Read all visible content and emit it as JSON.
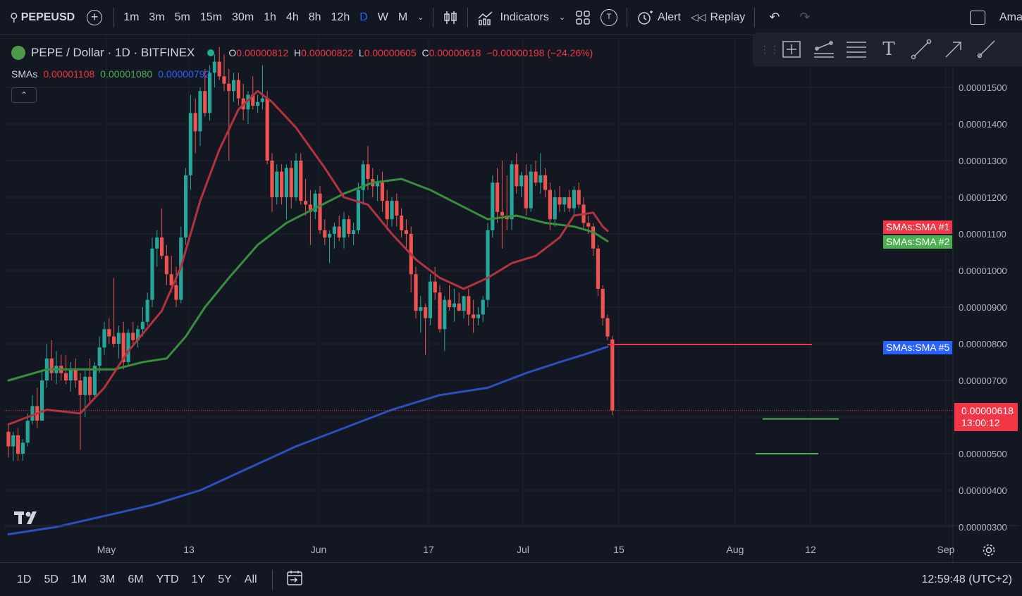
{
  "topbar": {
    "symbol": "PEPEUSD",
    "timeframes": [
      "1m",
      "3m",
      "5m",
      "15m",
      "30m",
      "1h",
      "4h",
      "8h",
      "12h",
      "D",
      "W",
      "M"
    ],
    "active_timeframe": "D",
    "indicators_label": "Indicators",
    "alert_label": "Alert",
    "replay_label": "Replay",
    "truncated_label": "Ama"
  },
  "legend": {
    "title": "PEPE / Dollar · 1D · BITFINEX",
    "o_label": "O",
    "o_value": "0.00000812",
    "h_label": "H",
    "h_value": "0.00000822",
    "l_label": "L",
    "l_value": "0.00000605",
    "c_label": "C",
    "c_value": "0.00000618",
    "change": "−0.00000198 (−24.26%)",
    "smas_label": "SMAs",
    "sma1_value": "0.00001108",
    "sma2_value": "0.00001080",
    "sma5_value": "0.00000792"
  },
  "price_labels": {
    "sma1": "SMAs:SMA #1",
    "sma2": "SMAs:SMA #2",
    "sma5": "SMAs:SMA #5",
    "last_price": "0.00000618",
    "countdown": "13:00:12"
  },
  "chart_data": {
    "type": "candlestick",
    "y_ticks": [
      "0.00001500",
      "0.00001400",
      "0.00001300",
      "0.00001200",
      "0.00001100",
      "0.00001000",
      "0.00000900",
      "0.00000800",
      "0.00000700",
      "0.00000500",
      "0.00000400",
      "0.00000300"
    ],
    "x_ticks": [
      "May",
      "13",
      "Jun",
      "17",
      "Jul",
      "15",
      "Aug",
      "12",
      "Sep"
    ],
    "ylim": [
      2.8e-06,
      1.6e-05
    ],
    "candles": [
      {
        "o": 5.6,
        "h": 5.8,
        "l": 4.9,
        "c": 5.2
      },
      {
        "o": 5.2,
        "h": 5.6,
        "l": 4.8,
        "c": 5.5
      },
      {
        "o": 5.5,
        "h": 5.7,
        "l": 4.8,
        "c": 5.0
      },
      {
        "o": 5.0,
        "h": 5.4,
        "l": 4.8,
        "c": 5.3
      },
      {
        "o": 5.3,
        "h": 6.1,
        "l": 5.2,
        "c": 5.9
      },
      {
        "o": 5.9,
        "h": 6.6,
        "l": 5.8,
        "c": 6.3
      },
      {
        "o": 6.3,
        "h": 6.8,
        "l": 5.7,
        "c": 5.9
      },
      {
        "o": 5.9,
        "h": 7.3,
        "l": 5.9,
        "c": 7.0
      },
      {
        "o": 7.0,
        "h": 8.0,
        "l": 6.8,
        "c": 7.6
      },
      {
        "o": 7.6,
        "h": 8.1,
        "l": 7.0,
        "c": 7.2
      },
      {
        "o": 7.2,
        "h": 7.8,
        "l": 6.9,
        "c": 7.4
      },
      {
        "o": 7.4,
        "h": 7.7,
        "l": 7.0,
        "c": 7.2
      },
      {
        "o": 7.2,
        "h": 7.7,
        "l": 6.9,
        "c": 7.0
      },
      {
        "o": 7.0,
        "h": 7.5,
        "l": 6.7,
        "c": 7.3
      },
      {
        "o": 7.3,
        "h": 7.6,
        "l": 6.8,
        "c": 7.0
      },
      {
        "o": 7.0,
        "h": 7.2,
        "l": 5.1,
        "c": 6.6
      },
      {
        "o": 6.6,
        "h": 7.3,
        "l": 6.0,
        "c": 7.1
      },
      {
        "o": 7.1,
        "h": 7.6,
        "l": 6.4,
        "c": 6.6
      },
      {
        "o": 6.6,
        "h": 7.5,
        "l": 6.5,
        "c": 7.4
      },
      {
        "o": 7.4,
        "h": 8.2,
        "l": 7.2,
        "c": 7.9
      },
      {
        "o": 7.9,
        "h": 8.6,
        "l": 7.7,
        "c": 8.4
      },
      {
        "o": 8.4,
        "h": 8.7,
        "l": 8.0,
        "c": 8.2
      },
      {
        "o": 8.2,
        "h": 9.8,
        "l": 7.9,
        "c": 8.0
      },
      {
        "o": 8.0,
        "h": 8.5,
        "l": 7.6,
        "c": 8.3
      },
      {
        "o": 8.3,
        "h": 8.6,
        "l": 7.3,
        "c": 7.5
      },
      {
        "o": 7.5,
        "h": 8.4,
        "l": 7.4,
        "c": 8.3
      },
      {
        "o": 8.3,
        "h": 8.6,
        "l": 8.0,
        "c": 8.1
      },
      {
        "o": 8.1,
        "h": 8.5,
        "l": 7.9,
        "c": 8.4
      },
      {
        "o": 8.4,
        "h": 9.0,
        "l": 8.2,
        "c": 8.6
      },
      {
        "o": 8.6,
        "h": 9.4,
        "l": 8.5,
        "c": 9.2
      },
      {
        "o": 9.2,
        "h": 10.9,
        "l": 9.0,
        "c": 10.6
      },
      {
        "o": 10.6,
        "h": 11.1,
        "l": 10.1,
        "c": 10.9
      },
      {
        "o": 10.9,
        "h": 11.7,
        "l": 10.3,
        "c": 10.4
      },
      {
        "o": 10.4,
        "h": 10.7,
        "l": 9.6,
        "c": 9.9
      },
      {
        "o": 9.9,
        "h": 10.4,
        "l": 9.4,
        "c": 9.6
      },
      {
        "o": 9.6,
        "h": 10.1,
        "l": 9.0,
        "c": 9.2
      },
      {
        "o": 9.2,
        "h": 11.2,
        "l": 9.1,
        "c": 10.9
      },
      {
        "o": 10.9,
        "h": 12.8,
        "l": 10.7,
        "c": 12.6
      },
      {
        "o": 12.6,
        "h": 14.8,
        "l": 12.2,
        "c": 14.3
      },
      {
        "o": 14.3,
        "h": 14.7,
        "l": 13.2,
        "c": 13.8
      },
      {
        "o": 13.8,
        "h": 15.0,
        "l": 13.4,
        "c": 14.9
      },
      {
        "o": 14.9,
        "h": 15.5,
        "l": 14.2,
        "c": 14.3
      },
      {
        "o": 14.3,
        "h": 15.6,
        "l": 14.1,
        "c": 15.4
      },
      {
        "o": 15.4,
        "h": 15.9,
        "l": 15.0,
        "c": 15.7
      },
      {
        "o": 15.7,
        "h": 16.1,
        "l": 15.2,
        "c": 15.3
      },
      {
        "o": 15.3,
        "h": 15.9,
        "l": 14.9,
        "c": 15.1
      },
      {
        "o": 15.1,
        "h": 15.5,
        "l": 13.0,
        "c": 14.9
      },
      {
        "o": 14.9,
        "h": 15.4,
        "l": 14.6,
        "c": 15.2
      },
      {
        "o": 15.2,
        "h": 15.4,
        "l": 14.5,
        "c": 14.7
      },
      {
        "o": 14.7,
        "h": 15.1,
        "l": 14.1,
        "c": 14.4
      },
      {
        "o": 14.4,
        "h": 14.9,
        "l": 14.0,
        "c": 14.8
      },
      {
        "o": 14.8,
        "h": 15.3,
        "l": 14.4,
        "c": 14.5
      },
      {
        "o": 14.5,
        "h": 14.8,
        "l": 14.3,
        "c": 14.6
      },
      {
        "o": 14.6,
        "h": 15.6,
        "l": 14.4,
        "c": 14.7
      },
      {
        "o": 14.7,
        "h": 14.9,
        "l": 12.9,
        "c": 13.0
      },
      {
        "o": 13.0,
        "h": 13.2,
        "l": 11.6,
        "c": 12.0
      },
      {
        "o": 12.0,
        "h": 12.9,
        "l": 11.8,
        "c": 12.7
      },
      {
        "o": 12.7,
        "h": 12.9,
        "l": 11.8,
        "c": 12.0
      },
      {
        "o": 12.0,
        "h": 12.9,
        "l": 11.4,
        "c": 12.8
      },
      {
        "o": 12.8,
        "h": 13.0,
        "l": 11.7,
        "c": 12.0
      },
      {
        "o": 12.0,
        "h": 13.2,
        "l": 11.9,
        "c": 13.0
      },
      {
        "o": 13.0,
        "h": 13.2,
        "l": 11.8,
        "c": 11.9
      },
      {
        "o": 11.9,
        "h": 12.5,
        "l": 11.5,
        "c": 11.8
      },
      {
        "o": 11.8,
        "h": 12.2,
        "l": 10.7,
        "c": 11.6
      },
      {
        "o": 11.6,
        "h": 12.2,
        "l": 11.4,
        "c": 12.1
      },
      {
        "o": 12.1,
        "h": 12.3,
        "l": 11.0,
        "c": 11.1
      },
      {
        "o": 11.1,
        "h": 11.4,
        "l": 10.7,
        "c": 10.9
      },
      {
        "o": 10.9,
        "h": 11.1,
        "l": 10.2,
        "c": 11.0
      },
      {
        "o": 11.0,
        "h": 11.3,
        "l": 10.6,
        "c": 11.2
      },
      {
        "o": 11.2,
        "h": 11.5,
        "l": 10.8,
        "c": 10.9
      },
      {
        "o": 10.9,
        "h": 11.6,
        "l": 10.6,
        "c": 11.4
      },
      {
        "o": 11.4,
        "h": 11.5,
        "l": 10.9,
        "c": 11.0
      },
      {
        "o": 11.0,
        "h": 11.3,
        "l": 10.7,
        "c": 11.1
      },
      {
        "o": 11.1,
        "h": 12.4,
        "l": 11.0,
        "c": 12.2
      },
      {
        "o": 12.2,
        "h": 13.0,
        "l": 11.8,
        "c": 12.9
      },
      {
        "o": 12.9,
        "h": 13.4,
        "l": 12.2,
        "c": 12.5
      },
      {
        "o": 12.5,
        "h": 12.8,
        "l": 12.0,
        "c": 12.3
      },
      {
        "o": 12.3,
        "h": 12.6,
        "l": 11.9,
        "c": 12.4
      },
      {
        "o": 12.4,
        "h": 12.7,
        "l": 11.6,
        "c": 11.9
      },
      {
        "o": 11.9,
        "h": 12.2,
        "l": 11.1,
        "c": 11.4
      },
      {
        "o": 11.4,
        "h": 12.0,
        "l": 11.2,
        "c": 11.9
      },
      {
        "o": 11.9,
        "h": 12.1,
        "l": 11.2,
        "c": 11.5
      },
      {
        "o": 11.5,
        "h": 11.7,
        "l": 10.9,
        "c": 11.1
      },
      {
        "o": 11.1,
        "h": 11.4,
        "l": 10.6,
        "c": 11.0
      },
      {
        "o": 11.0,
        "h": 11.2,
        "l": 9.4,
        "c": 9.9
      },
      {
        "o": 9.9,
        "h": 10.1,
        "l": 8.7,
        "c": 8.9
      },
      {
        "o": 8.9,
        "h": 9.3,
        "l": 8.3,
        "c": 9.0
      },
      {
        "o": 9.0,
        "h": 9.1,
        "l": 7.7,
        "c": 8.7
      },
      {
        "o": 8.7,
        "h": 9.9,
        "l": 8.5,
        "c": 9.7
      },
      {
        "o": 9.7,
        "h": 10.1,
        "l": 9.2,
        "c": 9.4
      },
      {
        "o": 9.4,
        "h": 9.6,
        "l": 8.3,
        "c": 8.4
      },
      {
        "o": 8.4,
        "h": 9.3,
        "l": 7.8,
        "c": 9.2
      },
      {
        "o": 9.2,
        "h": 9.6,
        "l": 8.9,
        "c": 9.0
      },
      {
        "o": 9.0,
        "h": 9.5,
        "l": 8.6,
        "c": 9.1
      },
      {
        "o": 9.1,
        "h": 9.4,
        "l": 8.9,
        "c": 8.9
      },
      {
        "o": 8.9,
        "h": 9.3,
        "l": 8.7,
        "c": 9.3
      },
      {
        "o": 9.3,
        "h": 9.5,
        "l": 8.5,
        "c": 8.8
      },
      {
        "o": 8.8,
        "h": 9.2,
        "l": 8.3,
        "c": 8.7
      },
      {
        "o": 8.7,
        "h": 9.0,
        "l": 8.5,
        "c": 8.8
      },
      {
        "o": 8.8,
        "h": 9.3,
        "l": 8.6,
        "c": 9.2
      },
      {
        "o": 9.2,
        "h": 11.3,
        "l": 9.0,
        "c": 11.1
      },
      {
        "o": 11.1,
        "h": 12.6,
        "l": 10.9,
        "c": 12.4
      },
      {
        "o": 12.4,
        "h": 12.8,
        "l": 11.3,
        "c": 11.6
      },
      {
        "o": 11.6,
        "h": 13.0,
        "l": 10.6,
        "c": 11.5
      },
      {
        "o": 11.5,
        "h": 12.6,
        "l": 11.1,
        "c": 11.4
      },
      {
        "o": 11.4,
        "h": 13.0,
        "l": 11.1,
        "c": 12.9
      },
      {
        "o": 12.9,
        "h": 13.2,
        "l": 12.1,
        "c": 12.3
      },
      {
        "o": 12.3,
        "h": 12.7,
        "l": 12.0,
        "c": 12.6
      },
      {
        "o": 12.6,
        "h": 12.9,
        "l": 11.5,
        "c": 11.7
      },
      {
        "o": 11.7,
        "h": 12.9,
        "l": 11.6,
        "c": 12.7
      },
      {
        "o": 12.7,
        "h": 13.0,
        "l": 12.3,
        "c": 12.4
      },
      {
        "o": 12.4,
        "h": 13.2,
        "l": 12.1,
        "c": 12.6
      },
      {
        "o": 12.6,
        "h": 12.8,
        "l": 12.0,
        "c": 12.2
      },
      {
        "o": 12.2,
        "h": 12.4,
        "l": 11.1,
        "c": 11.4
      },
      {
        "o": 11.4,
        "h": 12.2,
        "l": 11.2,
        "c": 12.0
      },
      {
        "o": 12.0,
        "h": 12.3,
        "l": 11.6,
        "c": 11.8
      },
      {
        "o": 11.8,
        "h": 12.0,
        "l": 11.6,
        "c": 12.0
      },
      {
        "o": 12.0,
        "h": 12.2,
        "l": 11.6,
        "c": 11.7
      },
      {
        "o": 11.7,
        "h": 12.3,
        "l": 11.5,
        "c": 12.2
      },
      {
        "o": 12.2,
        "h": 12.4,
        "l": 11.7,
        "c": 11.8
      },
      {
        "o": 11.8,
        "h": 12.0,
        "l": 11.1,
        "c": 11.3
      },
      {
        "o": 11.3,
        "h": 11.5,
        "l": 11.0,
        "c": 11.2
      },
      {
        "o": 11.2,
        "h": 11.3,
        "l": 10.4,
        "c": 10.6
      },
      {
        "o": 10.6,
        "h": 10.7,
        "l": 9.3,
        "c": 9.5
      },
      {
        "o": 9.5,
        "h": 9.6,
        "l": 8.5,
        "c": 8.7
      },
      {
        "o": 8.7,
        "h": 8.8,
        "l": 8.1,
        "c": 8.2
      },
      {
        "o": 8.12,
        "h": 8.22,
        "l": 6.05,
        "c": 6.18
      }
    ],
    "sma1": [
      [
        0,
        5.8
      ],
      [
        8,
        6.2
      ],
      [
        15,
        6.1
      ],
      [
        20,
        6.8
      ],
      [
        25,
        7.8
      ],
      [
        32,
        8.9
      ],
      [
        36,
        10.1
      ],
      [
        40,
        11.9
      ],
      [
        44,
        13.3
      ],
      [
        48,
        14.4
      ],
      [
        52,
        14.9
      ],
      [
        55,
        14.6
      ],
      [
        60,
        13.9
      ],
      [
        66,
        12.8
      ],
      [
        70,
        12.0
      ],
      [
        75,
        11.8
      ],
      [
        80,
        11.0
      ],
      [
        85,
        10.3
      ],
      [
        90,
        9.8
      ],
      [
        95,
        9.5
      ],
      [
        100,
        9.8
      ],
      [
        105,
        10.2
      ],
      [
        110,
        10.4
      ],
      [
        115,
        10.9
      ],
      [
        118,
        11.5
      ],
      [
        122,
        11.58
      ],
      [
        124,
        11.2
      ],
      [
        125,
        11.08
      ]
    ],
    "sma2": [
      [
        0,
        7.0
      ],
      [
        8,
        7.3
      ],
      [
        15,
        7.3
      ],
      [
        22,
        7.3
      ],
      [
        28,
        7.5
      ],
      [
        33,
        7.6
      ],
      [
        37,
        8.2
      ],
      [
        41,
        9.0
      ],
      [
        46,
        9.8
      ],
      [
        52,
        10.7
      ],
      [
        58,
        11.3
      ],
      [
        64,
        11.7
      ],
      [
        70,
        12.1
      ],
      [
        76,
        12.4
      ],
      [
        82,
        12.5
      ],
      [
        88,
        12.2
      ],
      [
        94,
        11.8
      ],
      [
        100,
        11.4
      ],
      [
        106,
        11.5
      ],
      [
        112,
        11.3
      ],
      [
        118,
        11.2
      ],
      [
        122,
        11.05
      ],
      [
        125,
        10.8
      ]
    ],
    "sma5": [
      [
        0,
        2.8
      ],
      [
        10,
        3.0
      ],
      [
        20,
        3.3
      ],
      [
        30,
        3.6
      ],
      [
        40,
        4.0
      ],
      [
        50,
        4.6
      ],
      [
        60,
        5.2
      ],
      [
        70,
        5.7
      ],
      [
        80,
        6.2
      ],
      [
        90,
        6.6
      ],
      [
        100,
        6.8
      ],
      [
        108,
        7.2
      ],
      [
        115,
        7.5
      ],
      [
        120,
        7.7
      ],
      [
        125,
        7.92
      ]
    ],
    "series_colors": {
      "up": "#26a69a",
      "down": "#ef5350",
      "sma1": "#b2333f",
      "sma2": "#388e3c",
      "sma5": "#2b4fbf"
    },
    "extension_lines": {
      "red_level": 7.98,
      "green_level_1": 5.95,
      "green_level_2": 5.0
    }
  },
  "bottombar": {
    "ranges": [
      "1D",
      "5D",
      "1M",
      "3M",
      "6M",
      "YTD",
      "1Y",
      "5Y",
      "All"
    ],
    "clock": "12:59:48 (UTC+2)"
  }
}
